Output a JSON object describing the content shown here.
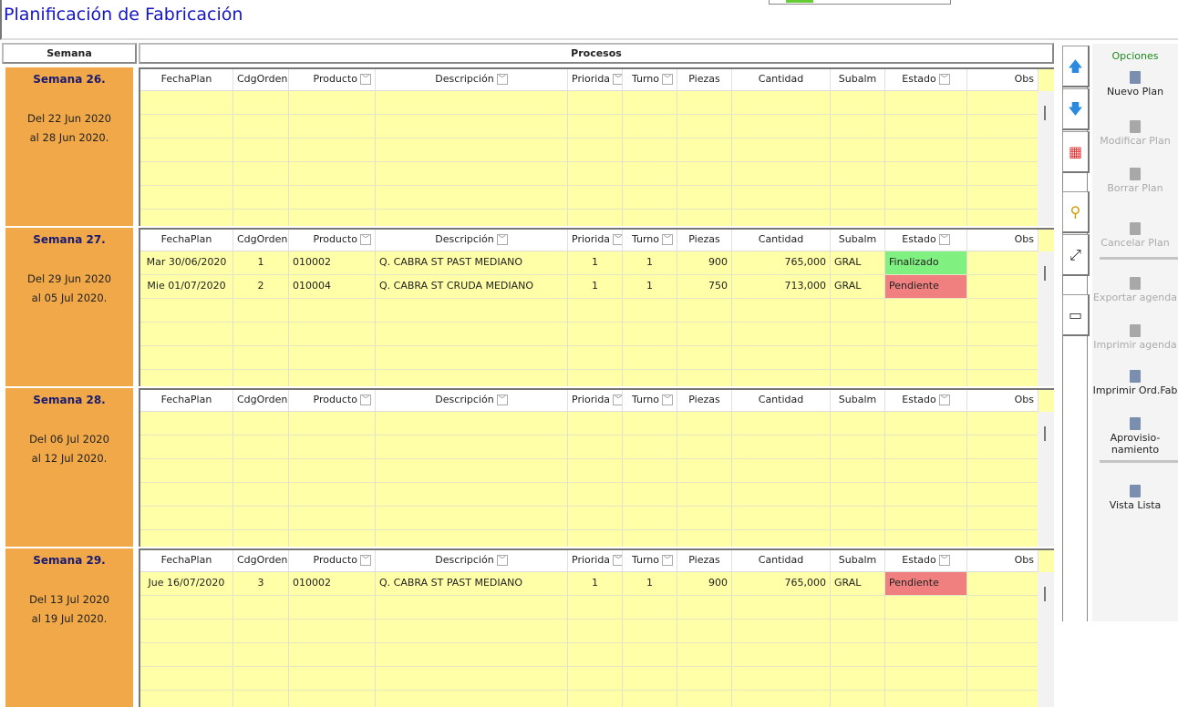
{
  "title": "Planificación de Fabricación",
  "headers": {
    "semana": "Semana",
    "procesos": "Procesos"
  },
  "columns": [
    "FechaPlan",
    "CdgOrden",
    "Producto",
    "Descripción",
    "Priorida",
    "Turno",
    "Piezas",
    "Cantidad",
    "Subalm",
    "Estado",
    "Obs"
  ],
  "weeks": [
    {
      "name": "Semana 26.",
      "from": "Del 22 Jun 2020",
      "to": "al 28 Jun 2020.",
      "rows": []
    },
    {
      "name": "Semana 27.",
      "from": "Del 29 Jun 2020",
      "to": "al 05 Jul 2020.",
      "rows": [
        {
          "fecha": "Mar 30/06/2020",
          "orden": "1",
          "producto": "010002",
          "descripcion": "Q. CABRA ST PAST MEDIANO",
          "prioridad": "1",
          "turno": "1",
          "piezas": "900",
          "cantidad": "765,000",
          "subalm": "GRAL",
          "estado": "Finalizado",
          "obs": ""
        },
        {
          "fecha": "Mie 01/07/2020",
          "orden": "2",
          "producto": "010004",
          "descripcion": "Q. CABRA ST CRUDA MEDIANO",
          "prioridad": "1",
          "turno": "1",
          "piezas": "750",
          "cantidad": "713,000",
          "subalm": "GRAL",
          "estado": "Pendiente",
          "obs": ""
        }
      ]
    },
    {
      "name": "Semana 28.",
      "from": "Del 06 Jul 2020",
      "to": "al 12 Jul 2020.",
      "rows": []
    },
    {
      "name": "Semana 29.",
      "from": "Del 13 Jul 2020",
      "to": "al 19 Jul 2020.",
      "rows": [
        {
          "fecha": "Jue 16/07/2020",
          "orden": "3",
          "producto": "010002",
          "descripcion": "Q. CABRA ST PAST MEDIANO",
          "prioridad": "1",
          "turno": "1",
          "piezas": "900",
          "cantidad": "765,000",
          "subalm": "GRAL",
          "estado": "Pendiente",
          "obs": ""
        }
      ]
    }
  ],
  "status_colors": {
    "Finalizado": "#80f080",
    "Pendiente": "#f08080"
  },
  "nav_icons": [
    "arrow-up-icon",
    "arrow-down-icon",
    "calendar-icon",
    "search-icon",
    "expand-icon",
    "window-icon"
  ],
  "options": {
    "title": "Opciones",
    "items": [
      {
        "label": "Nuevo Plan",
        "enabled": true,
        "icon": "new-document-icon"
      },
      {
        "label": "Modificar Plan",
        "enabled": false,
        "icon": "edit-document-icon"
      },
      {
        "label": "Borrar Plan",
        "enabled": false,
        "icon": "delete-document-icon"
      },
      {
        "label": "Cancelar Plan",
        "enabled": false,
        "icon": "cancel-icon"
      },
      {
        "label": "Exportar agenda",
        "enabled": false,
        "icon": "export-icon"
      },
      {
        "label": "Imprimir agenda",
        "enabled": false,
        "icon": "print-agenda-icon"
      },
      {
        "label": "Imprimir Ord.Fab",
        "enabled": true,
        "icon": "print-order-icon"
      },
      {
        "label": "Aprovisio-namiento",
        "enabled": true,
        "icon": "printer-icon"
      },
      {
        "label": "Vista Lista",
        "enabled": true,
        "icon": "list-view-icon"
      }
    ]
  }
}
